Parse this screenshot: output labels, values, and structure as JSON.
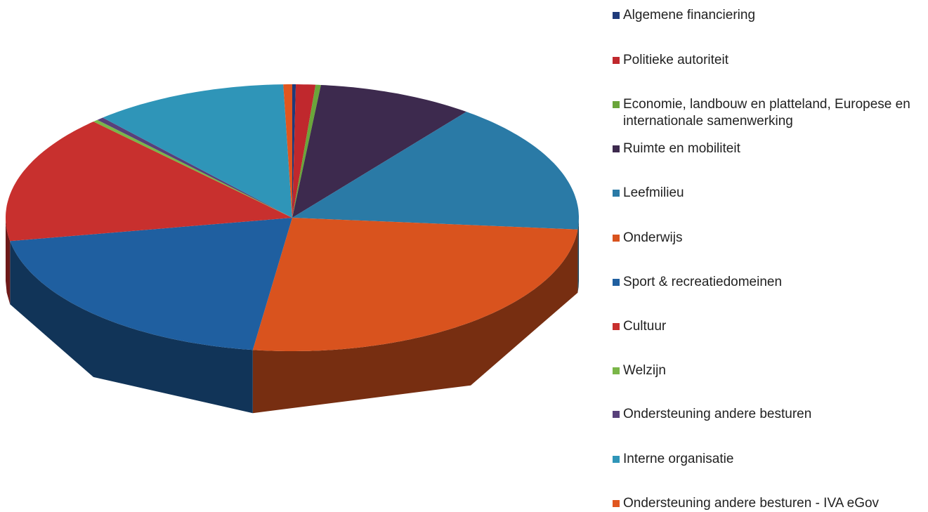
{
  "chart_data": {
    "type": "pie3d",
    "categories": [
      "Algemene financiering",
      "Politieke autoriteit",
      "Economie, landbouw en platteland, Europese en internationale samenwerking",
      "Ruimte en mobiliteit",
      "Leefmilieu",
      "Onderwijs",
      "Sport & recreatiedomeinen",
      "Cultuur",
      "Welzijn",
      "Ondersteuning andere besturen",
      "Interne organisatie",
      "Ondersteuning andere besturen - IVA eGov"
    ],
    "values": [
      0.2,
      1.1,
      0.3,
      8.8,
      16,
      25.8,
      20,
      15.6,
      0.3,
      0.4,
      11,
      0.5
    ],
    "colors": [
      "#1f3a7a",
      "#c0282d",
      "#6aa53a",
      "#3d2a4e",
      "#2a7aa6",
      "#d9531e",
      "#1f5fa0",
      "#c8302e",
      "#7ab648",
      "#58407a",
      "#2f95b8",
      "#e0561f"
    ],
    "legend": "right"
  }
}
